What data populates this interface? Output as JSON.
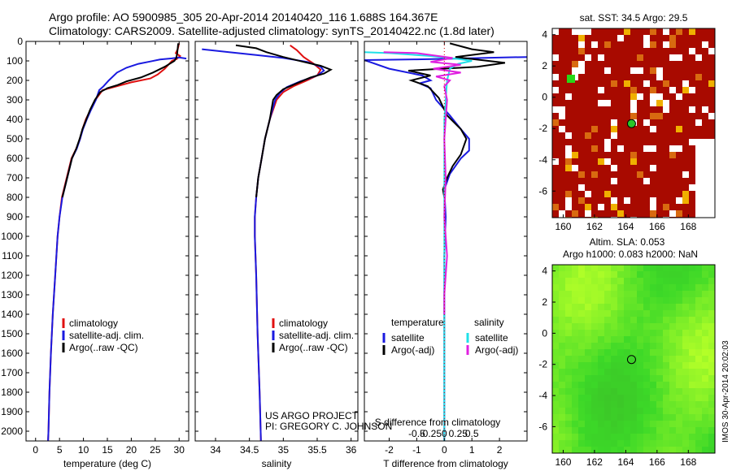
{
  "header": {
    "line1": "Argo profile: AO 5900985_305 20-Apr-2014 20140420_116 1.688S 164.367E",
    "line2": "Climatology: CARS2009. Satellite-adjusted climatology: synTS_20140422.nc (1.8d later)"
  },
  "colors": {
    "climatology": "#e01010",
    "satellite": "#1a1ae0",
    "argo": "#000000",
    "cyan": "#20e0e8",
    "magenta": "#e020e0",
    "sst_land": "#a80a00"
  },
  "depth_axis": {
    "ylim": [
      0,
      2050
    ],
    "ticks": [
      0,
      100,
      200,
      300,
      400,
      500,
      600,
      700,
      800,
      900,
      1000,
      1100,
      1200,
      1300,
      1400,
      1500,
      1600,
      1700,
      1800,
      1900,
      2000
    ]
  },
  "chart_data": [
    {
      "type": "line",
      "id": "temperature",
      "xlabel": "temperature (deg C)",
      "xlim": [
        -2,
        32
      ],
      "xticks": [
        0,
        5,
        10,
        15,
        20,
        25,
        30
      ],
      "legend": [
        "climatology",
        "satellite-adj. clim.",
        "Argo(..raw -QC)"
      ],
      "series": [
        {
          "name": "climatology",
          "color": "#e01010",
          "points": [
            [
              30,
              10
            ],
            [
              29.7,
              40
            ],
            [
              29.3,
              60
            ],
            [
              30.2,
              75
            ],
            [
              29.5,
              90
            ],
            [
              28.5,
              100
            ],
            [
              27,
              140
            ],
            [
              25.5,
              170
            ],
            [
              24,
              190
            ],
            [
              20,
              210
            ],
            [
              17,
              230
            ],
            [
              14,
              250
            ],
            [
              12.5,
              300
            ],
            [
              11.5,
              350
            ],
            [
              10.5,
              400
            ],
            [
              9.8,
              450
            ],
            [
              9.3,
              500
            ],
            [
              8.5,
              550
            ],
            [
              7.5,
              600
            ],
            [
              6.5,
              700
            ],
            [
              5.5,
              800
            ],
            [
              5,
              900
            ],
            [
              4.6,
              1000
            ],
            [
              4.1,
              1200
            ],
            [
              3.6,
              1400
            ],
            [
              3.2,
              1600
            ],
            [
              2.9,
              1800
            ],
            [
              2.7,
              2000
            ],
            [
              2.6,
              2050
            ]
          ]
        },
        {
          "name": "satellite-adj. clim.",
          "color": "#1a1ae0",
          "points": [
            [
              31.5,
              88
            ],
            [
              30,
              82
            ],
            [
              28.5,
              87
            ],
            [
              26,
              93
            ],
            [
              24,
              103
            ],
            [
              21.5,
              115
            ],
            [
              19,
              135
            ],
            [
              17,
              160
            ],
            [
              15.3,
              200
            ],
            [
              14.2,
              230
            ],
            [
              13.3,
              250
            ],
            [
              12.6,
              300
            ],
            [
              11.6,
              350
            ],
            [
              10.7,
              400
            ],
            [
              9.9,
              450
            ],
            [
              9.3,
              500
            ],
            [
              8.6,
              550
            ],
            [
              7.6,
              600
            ],
            [
              6.6,
              700
            ],
            [
              5.6,
              800
            ],
            [
              5,
              900
            ],
            [
              4.6,
              1000
            ],
            [
              4.1,
              1200
            ],
            [
              3.6,
              1400
            ],
            [
              3.2,
              1600
            ],
            [
              2.9,
              1800
            ],
            [
              2.7,
              2000
            ],
            [
              2.6,
              2050
            ]
          ]
        },
        {
          "name": "Argo(..raw -QC)",
          "color": "#000000",
          "points": [
            [
              29.8,
              10
            ],
            [
              29.6,
              60
            ],
            [
              29.4,
              85
            ],
            [
              29,
              100
            ],
            [
              27,
              130
            ],
            [
              24.5,
              160
            ],
            [
              22,
              185
            ],
            [
              19,
              205
            ],
            [
              17,
              225
            ],
            [
              15,
              240
            ],
            [
              13.5,
              260
            ],
            [
              12.4,
              300
            ],
            [
              11.4,
              350
            ],
            [
              10.6,
              400
            ],
            [
              9.8,
              450
            ],
            [
              9.2,
              500
            ],
            [
              8.5,
              550
            ],
            [
              7.6,
              600
            ],
            [
              6.6,
              700
            ],
            [
              5.6,
              800
            ]
          ]
        }
      ]
    },
    {
      "type": "line",
      "id": "salinity",
      "xlabel": "salinity",
      "xlim": [
        33.7,
        36.1
      ],
      "xticks": [
        34,
        34.5,
        35,
        35.5,
        36
      ],
      "legend": [
        "climatology",
        "satellite-adj. clim.",
        "Argo(..raw -QC)"
      ],
      "series": [
        {
          "name": "climatology",
          "color": "#e01010",
          "points": [
            [
              35.1,
              20
            ],
            [
              35.2,
              45
            ],
            [
              35.3,
              80
            ],
            [
              35.45,
              115
            ],
            [
              35.55,
              145
            ],
            [
              35.5,
              175
            ],
            [
              35.35,
              200
            ],
            [
              35.15,
              230
            ],
            [
              35,
              260
            ],
            [
              34.9,
              300
            ],
            [
              34.8,
              400
            ],
            [
              34.73,
              500
            ],
            [
              34.68,
              600
            ],
            [
              34.63,
              700
            ],
            [
              34.6,
              800
            ],
            [
              34.58,
              900
            ],
            [
              34.58,
              1000
            ],
            [
              34.6,
              1200
            ],
            [
              34.62,
              1500
            ],
            [
              34.65,
              1800
            ],
            [
              34.67,
              2050
            ]
          ]
        },
        {
          "name": "satellite-adj. clim.",
          "color": "#1a1ae0",
          "points": [
            [
              33.8,
              40
            ],
            [
              34.2,
              55
            ],
            [
              34.6,
              70
            ],
            [
              35,
              85
            ],
            [
              35.35,
              105
            ],
            [
              35.55,
              130
            ],
            [
              35.6,
              150
            ],
            [
              35.5,
              175
            ],
            [
              35.25,
              205
            ],
            [
              35.05,
              235
            ],
            [
              34.95,
              265
            ],
            [
              34.88,
              300
            ],
            [
              34.8,
              400
            ],
            [
              34.73,
              500
            ],
            [
              34.68,
              600
            ],
            [
              34.63,
              700
            ],
            [
              34.6,
              800
            ],
            [
              34.58,
              900
            ],
            [
              34.58,
              1000
            ],
            [
              34.6,
              1200
            ],
            [
              34.62,
              1500
            ],
            [
              34.65,
              1800
            ],
            [
              34.67,
              2050
            ]
          ]
        },
        {
          "name": "Argo(..raw -QC)",
          "color": "#000000",
          "points": [
            [
              34.3,
              20
            ],
            [
              34.6,
              35
            ],
            [
              34.75,
              55
            ],
            [
              35,
              80
            ],
            [
              35.3,
              105
            ],
            [
              35.55,
              125
            ],
            [
              35.7,
              145
            ],
            [
              35.6,
              165
            ],
            [
              35.4,
              185
            ],
            [
              35.2,
              215
            ],
            [
              35,
              245
            ],
            [
              34.9,
              275
            ],
            [
              34.85,
              300
            ],
            [
              34.8,
              400
            ],
            [
              34.73,
              500
            ],
            [
              34.68,
              600
            ],
            [
              34.63,
              700
            ],
            [
              34.6,
              800
            ]
          ]
        }
      ]
    },
    {
      "type": "line",
      "id": "differences",
      "xlabel": "T difference from climatology",
      "xlabel2": "S difference from climatology",
      "xlim": [
        -2.9,
        3
      ],
      "xticks": [
        -2,
        -1,
        0,
        1,
        2
      ],
      "xticks_top": [
        -0.5,
        -0.25,
        0,
        0.25,
        0.5
      ],
      "legend_titles": [
        "temperature",
        "salinity"
      ],
      "legend": [
        "satellite",
        "Argo(-adj)",
        "satellite",
        "Argo(-adj)"
      ],
      "series": [
        {
          "name": "temperature satellite",
          "color": "#1a1ae0",
          "points": [
            [
              3,
              80
            ],
            [
              1.5,
              84
            ],
            [
              0.5,
              88
            ],
            [
              -1,
              92
            ],
            [
              -2.9,
              96
            ],
            [
              -2,
              140
            ],
            [
              -0.8,
              175
            ],
            [
              -0.5,
              200
            ],
            [
              -0.9,
              215
            ],
            [
              -0.5,
              240
            ],
            [
              -0.3,
              300
            ],
            [
              0.2,
              380
            ],
            [
              0.6,
              450
            ],
            [
              0.9,
              500
            ],
            [
              0.9,
              560
            ],
            [
              0.6,
              600
            ],
            [
              0.2,
              680
            ],
            [
              0,
              760
            ],
            [
              0.05,
              900
            ],
            [
              0,
              1100
            ],
            [
              0,
              1600
            ],
            [
              0,
              2050
            ]
          ]
        },
        {
          "name": "temperature Argo(-adj)",
          "color": "#000000",
          "points": [
            [
              0.2,
              10
            ],
            [
              1,
              40
            ],
            [
              1.8,
              55
            ],
            [
              0.4,
              80
            ],
            [
              2.2,
              110
            ],
            [
              1.2,
              130
            ],
            [
              -1.3,
              150
            ],
            [
              -0.5,
              175
            ],
            [
              -1.2,
              200
            ],
            [
              -0.6,
              230
            ],
            [
              -0.2,
              290
            ],
            [
              0.1,
              380
            ],
            [
              0.6,
              450
            ],
            [
              0.8,
              500
            ],
            [
              0.6,
              580
            ],
            [
              0.3,
              640
            ],
            [
              0.1,
              700
            ],
            [
              -0.05,
              760
            ],
            [
              0,
              800
            ]
          ]
        },
        {
          "name": "salinity satellite",
          "color": "#20e0e8",
          "points": [
            [
              -2.9,
              55
            ],
            [
              -2,
              60
            ],
            [
              -0.5,
              75
            ],
            [
              0.5,
              90
            ],
            [
              1,
              100
            ],
            [
              0.5,
              115
            ],
            [
              0.2,
              140
            ],
            [
              0.1,
              200
            ],
            [
              0,
              400
            ],
            [
              0,
              800
            ],
            [
              0,
              1200
            ],
            [
              0,
              1600
            ],
            [
              0,
              2050
            ]
          ]
        },
        {
          "name": "salinity Argo(-adj)",
          "color": "#e020e0",
          "points": [
            [
              -2.2,
              55
            ],
            [
              -1,
              60
            ],
            [
              0.3,
              85
            ],
            [
              -0.5,
              105
            ],
            [
              0.6,
              120
            ],
            [
              -0.4,
              140
            ],
            [
              0.6,
              160
            ],
            [
              -0.3,
              180
            ],
            [
              0.2,
              200
            ],
            [
              0,
              230
            ],
            [
              0.1,
              300
            ],
            [
              0,
              500
            ],
            [
              0.05,
              700
            ],
            [
              0,
              900
            ],
            [
              0.1,
              1100
            ],
            [
              0,
              1300
            ],
            [
              0,
              1400
            ]
          ]
        }
      ]
    },
    {
      "type": "heatmap",
      "id": "sst_map",
      "title": "sat. SST: 34.5  Argo: 29.5",
      "xlim": [
        159.3,
        169.7
      ],
      "ylim": [
        -7.7,
        4.4
      ],
      "xticks": [
        160,
        162,
        164,
        166,
        168
      ],
      "yticks": [
        -6,
        -4,
        -2,
        0,
        2,
        4
      ],
      "argo_position": [
        164.367,
        -1.688
      ]
    },
    {
      "type": "heatmap",
      "id": "sla_map",
      "title": "Altim. SLA: 0.053",
      "subtitle": "Argo h1000: 0.083 h2000: NaN",
      "xlim": [
        159.3,
        169.7
      ],
      "ylim": [
        -7.7,
        4.4
      ],
      "xticks": [
        160,
        162,
        164,
        166,
        168
      ],
      "yticks": [
        -6,
        -4,
        -2,
        0,
        2,
        4
      ],
      "argo_position": [
        164.367,
        -1.688
      ]
    }
  ],
  "annotations": {
    "project": "US ARGO PROJECT",
    "pi": "PI: GREGORY C. JOHNSON",
    "stamp": "IMOS 30-Apr-2014 20:02:03"
  }
}
